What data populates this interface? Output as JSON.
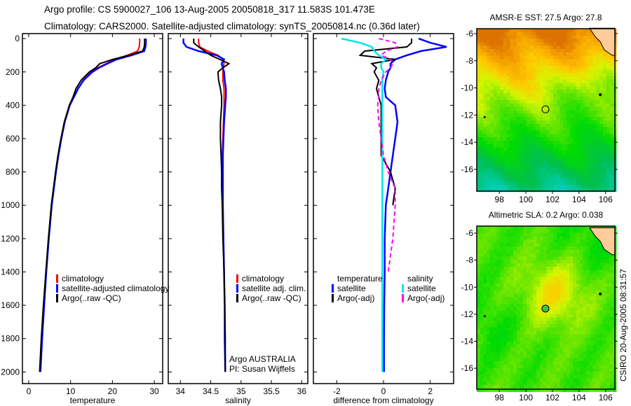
{
  "header": {
    "line1": "Argo profile: CS 5900027_106 13-Aug-2005 20050818_317 11.583S 101.473E",
    "line2": "Climatology: CARS2000. Satellite-adjusted climatology: synTS_20050814.nc (0.36d later)"
  },
  "side_stamp": "CSIRO 20-Aug-2005 08:31:57",
  "chart_data": [
    {
      "id": "temp",
      "type": "line",
      "xlabel": "temperature",
      "ylabel": "",
      "xlim": [
        -1.5,
        32
      ],
      "ylim": [
        2070,
        -30
      ],
      "xticks": [
        0,
        10,
        20,
        30
      ],
      "yticks": [
        0,
        200,
        400,
        600,
        800,
        1000,
        1200,
        1400,
        1600,
        1800,
        2000
      ],
      "show_ylabels": true,
      "legend": {
        "position": "bottom-center",
        "entries": [
          "climatology",
          "satellite-adjusted climatology",
          "Argo(..raw -QC)"
        ]
      },
      "series": [
        {
          "name": "climatology",
          "color": "#ff0000",
          "dash": false,
          "depth": [
            0,
            25,
            50,
            75,
            100,
            125,
            150,
            175,
            200,
            250,
            300,
            350,
            400,
            500,
            600,
            700,
            800,
            900,
            1000,
            1200,
            1400
          ],
          "values": [
            26.5,
            26.5,
            26.4,
            26.0,
            23.5,
            20.5,
            18.5,
            16.5,
            15.0,
            13.0,
            11.8,
            10.8,
            9.8,
            8.6,
            7.8,
            7.1,
            6.5,
            6.0,
            5.5,
            4.8,
            4.2
          ]
        },
        {
          "name": "satellite-adjusted climatology",
          "color": "#0000ff",
          "dash": false,
          "depth": [
            0,
            25,
            50,
            75,
            100,
            125,
            150,
            175,
            200,
            250,
            300,
            350,
            400,
            500,
            600,
            700,
            800,
            900,
            1000,
            1200,
            1400,
            1600,
            1800,
            2000
          ],
          "values": [
            28.0,
            28.0,
            27.9,
            27.6,
            24.5,
            21.0,
            18.8,
            16.8,
            15.2,
            13.1,
            11.8,
            10.8,
            9.8,
            8.6,
            7.8,
            7.1,
            6.5,
            6.0,
            5.5,
            4.8,
            4.2,
            3.7,
            3.2,
            2.8
          ]
        },
        {
          "name": "Argo(..raw -QC)",
          "color": "#000000",
          "dash": false,
          "depth": [
            0,
            25,
            50,
            75,
            100,
            125,
            150,
            175,
            200,
            250,
            300,
            350,
            400,
            500,
            600,
            700,
            800,
            900,
            1000,
            1200,
            1400,
            1600,
            1800,
            2000
          ],
          "values": [
            27.7,
            27.7,
            27.6,
            27.2,
            24.0,
            20.0,
            17.0,
            16.0,
            14.5,
            12.5,
            11.3,
            10.6,
            9.7,
            8.5,
            7.7,
            7.0,
            6.4,
            5.9,
            5.4,
            4.7,
            4.1,
            3.5,
            3.0,
            2.6
          ]
        }
      ]
    },
    {
      "id": "sal",
      "type": "line",
      "xlabel": "salinity",
      "xlim": [
        33.8,
        36.1
      ],
      "ylim": [
        2070,
        -30
      ],
      "xticks": [
        34,
        34.5,
        35,
        35.5,
        36
      ],
      "yticks": [
        0,
        200,
        400,
        600,
        800,
        1000,
        1200,
        1400,
        1600,
        1800,
        2000
      ],
      "show_ylabels": false,
      "legend": {
        "position": "bottom-right",
        "entries": [
          "climatology",
          "satellite adj. clim.",
          "Argo(..raw -QC)"
        ]
      },
      "annotation": [
        "Argo AUSTRALIA",
        "PI: Susan Wijffels"
      ],
      "series": [
        {
          "name": "climatology",
          "color": "#ff0000",
          "dash": false,
          "depth": [
            0,
            25,
            50,
            75,
            100,
            125,
            150,
            175,
            200,
            250,
            300,
            350,
            400,
            500,
            600,
            700,
            800,
            900,
            1000,
            1200,
            1400
          ],
          "values": [
            34.3,
            34.3,
            34.32,
            34.45,
            34.62,
            34.7,
            34.72,
            34.7,
            34.7,
            34.7,
            34.72,
            34.72,
            34.72,
            34.71,
            34.7,
            34.69,
            34.69,
            34.7,
            34.7,
            34.71,
            34.72
          ]
        },
        {
          "name": "satellite adj. clim.",
          "color": "#0000ff",
          "dash": false,
          "depth": [
            0,
            25,
            50,
            75,
            100,
            125,
            150,
            175,
            200,
            250,
            300,
            350,
            400,
            500,
            600,
            700,
            800,
            900,
            1000,
            1200,
            1400,
            1600,
            1800,
            2000
          ],
          "values": [
            34.05,
            34.05,
            34.1,
            34.3,
            34.6,
            34.72,
            34.68,
            34.7,
            34.72,
            34.73,
            34.75,
            34.75,
            34.74,
            34.72,
            34.71,
            34.7,
            34.7,
            34.7,
            34.7,
            34.71,
            34.72,
            34.73,
            34.73,
            34.74
          ]
        },
        {
          "name": "Argo(..raw -QC)",
          "color": "#000000",
          "dash": false,
          "depth": [
            0,
            25,
            50,
            75,
            100,
            125,
            150,
            175,
            200,
            250,
            300,
            350,
            400,
            500,
            600,
            700,
            800,
            900,
            1000,
            1200,
            1400,
            1600,
            1800,
            2000
          ],
          "values": [
            34.22,
            34.22,
            34.3,
            34.4,
            34.5,
            34.65,
            34.8,
            34.7,
            34.62,
            34.63,
            34.66,
            34.68,
            34.68,
            34.66,
            34.66,
            34.67,
            34.68,
            34.68,
            34.69,
            34.7,
            34.72,
            34.73,
            34.74,
            34.74
          ]
        }
      ]
    },
    {
      "id": "diff",
      "type": "line",
      "xlabel": "difference from climatology",
      "xlim": [
        -3,
        3
      ],
      "ylim": [
        2070,
        -30
      ],
      "xticks": [
        -2,
        0,
        2
      ],
      "yticks": [
        0,
        200,
        400,
        600,
        800,
        1000,
        1200,
        1400,
        1600,
        1800,
        2000
      ],
      "show_ylabels": false,
      "legend": {
        "position": "bottom",
        "headers": [
          "temperature",
          "salinity"
        ],
        "entries": [
          "satellite",
          "Argo(-adj)",
          "satellite",
          "Argo(-adj)"
        ]
      },
      "series": [
        {
          "name": "temperature satellite",
          "color": "#0000ff",
          "dash": false,
          "depth": [
            0,
            25,
            50,
            75,
            100,
            125,
            150,
            175,
            200,
            250,
            300,
            350,
            400,
            500,
            600,
            700,
            800,
            900,
            1000,
            1200,
            1400,
            1600,
            1800,
            2000
          ],
          "values": [
            1.5,
            2.0,
            2.7,
            1.6,
            1.0,
            0.5,
            0.3,
            0.3,
            0.2,
            0.1,
            0.05,
            0.1,
            0.5,
            0.6,
            0.5,
            0.4,
            0.3,
            0.2,
            0.1,
            0.05,
            0.05,
            0.03,
            0.02,
            0.02
          ]
        },
        {
          "name": "temperature Argo(-adj)",
          "color": "#000000",
          "dash": false,
          "depth": [
            0,
            25,
            50,
            75,
            100,
            125,
            150,
            175,
            200,
            250,
            300,
            350,
            400,
            500,
            600,
            700,
            800,
            900,
            1000
          ],
          "values": [
            1.2,
            1.2,
            1.0,
            -0.8,
            -1.0,
            0.5,
            -0.5,
            -0.3,
            -0.4,
            -0.2,
            -0.3,
            -0.2,
            -0.1,
            -0.1,
            -0.1,
            -0.1,
            0.3,
            0.5,
            0.4
          ]
        },
        {
          "name": "salinity satellite",
          "color": "#00e5ee",
          "dash": false,
          "depth": [
            0,
            25,
            50,
            75,
            100,
            125,
            150,
            175,
            200,
            250,
            300,
            350,
            400,
            500,
            600,
            700,
            800,
            900,
            1000,
            1200,
            1400,
            1600,
            1800,
            2000
          ],
          "values": [
            -1.8,
            -1.0,
            -0.5,
            -0.4,
            -0.2,
            0.1,
            -0.1,
            -0.1,
            0.0,
            -0.05,
            -0.05,
            -0.05,
            -0.05,
            -0.05,
            -0.05,
            -0.05,
            -0.05,
            -0.05,
            -0.05,
            -0.05,
            -0.05,
            -0.05,
            -0.05,
            -0.05
          ]
        },
        {
          "name": "salinity Argo(-adj)",
          "color": "#ff00ff",
          "dash": true,
          "depth": [
            0,
            25,
            50,
            75,
            100,
            125,
            150,
            175,
            200,
            250,
            300,
            350,
            400,
            500,
            600,
            700,
            800,
            900,
            1000,
            1200,
            1400
          ],
          "values": [
            -0.2,
            0.5,
            0.6,
            0.1,
            -0.1,
            0.3,
            0.4,
            0.3,
            0.1,
            -0.1,
            -0.2,
            -0.2,
            -0.25,
            -0.2,
            -0.1,
            0.0,
            0.2,
            0.5,
            0.5,
            0.4,
            0.2
          ]
        }
      ]
    },
    {
      "id": "sst_map",
      "type": "heatmap",
      "title": "AMSR-E SST: 27.5 Argo: 27.8",
      "xlim": [
        96.3,
        106.7
      ],
      "ylim": [
        -17.6,
        -5.64
      ],
      "xticks": [
        98,
        100,
        102,
        104,
        106
      ],
      "yticks": [
        -6,
        -8,
        -10,
        -12,
        -14,
        -16
      ],
      "float_position": [
        101.473,
        -11.583
      ],
      "marker_filled": false
    },
    {
      "id": "sla_map",
      "type": "heatmap",
      "title": "Altimetric SLA: 0.2 Argo: 0.038",
      "xlim": [
        96.3,
        106.7
      ],
      "ylim": [
        -17.55,
        -5.48
      ],
      "xticks": [
        98,
        100,
        102,
        104,
        106
      ],
      "yticks": [
        -6,
        -8,
        -10,
        -12,
        -14,
        -16
      ],
      "float_position": [
        101.473,
        -11.583
      ],
      "marker_filled": true
    }
  ]
}
